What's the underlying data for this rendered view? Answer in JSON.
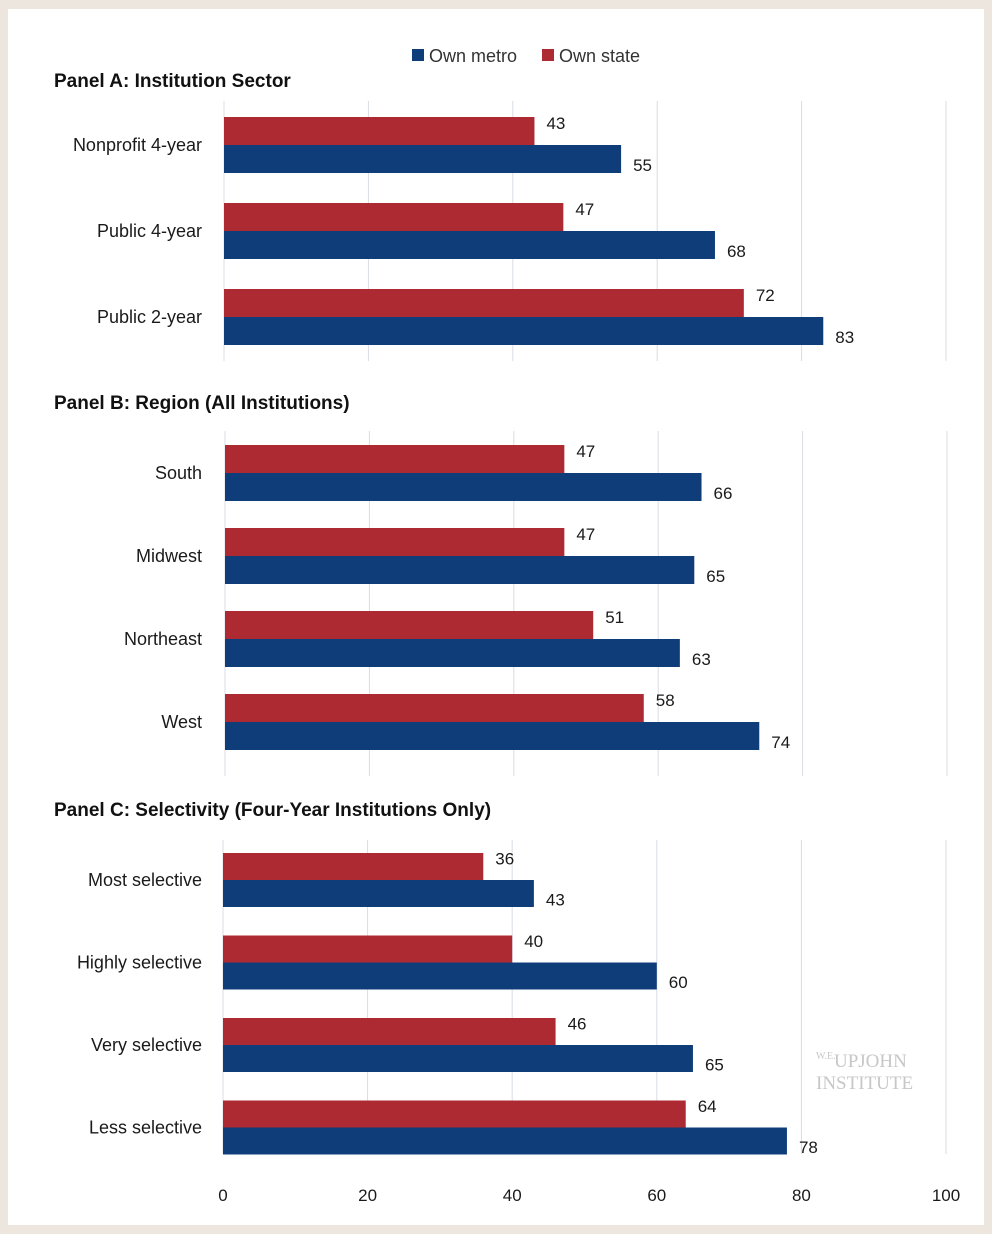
{
  "legend": [
    {
      "name": "Own metro",
      "color": "#0f3d7a"
    },
    {
      "name": "Own state",
      "color": "#ad2a33"
    }
  ],
  "watermark": {
    "small": "W.E.",
    "line1": "UPJOHN",
    "line2": "INSTITUTE"
  },
  "chart_data": [
    {
      "type": "bar",
      "orientation": "horizontal",
      "title": "Panel A: Institution Sector",
      "categories": [
        "Nonprofit 4-year",
        "Public 4-year",
        "Public 2-year"
      ],
      "series": [
        {
          "name": "Own state",
          "values": [
            43,
            47,
            72
          ]
        },
        {
          "name": "Own metro",
          "values": [
            55,
            68,
            83
          ]
        }
      ],
      "xlim": [
        0,
        100
      ],
      "grid": true
    },
    {
      "type": "bar",
      "orientation": "horizontal",
      "title": "Panel B: Region (All Institutions)",
      "categories": [
        "South",
        "Midwest",
        "Northeast",
        "West"
      ],
      "series": [
        {
          "name": "Own state",
          "values": [
            47,
            47,
            51,
            58
          ]
        },
        {
          "name": "Own metro",
          "values": [
            66,
            65,
            63,
            74
          ]
        }
      ],
      "xlim": [
        0,
        100
      ],
      "grid": true
    },
    {
      "type": "bar",
      "orientation": "horizontal",
      "title": "Panel C: Selectivity (Four-Year Institutions Only)",
      "categories": [
        "Most selective",
        "Highly selective",
        "Very selective",
        "Less selective"
      ],
      "series": [
        {
          "name": "Own state",
          "values": [
            36,
            40,
            46,
            64
          ]
        },
        {
          "name": "Own metro",
          "values": [
            43,
            60,
            65,
            78
          ]
        }
      ],
      "xlim": [
        0,
        100
      ],
      "xticks": [
        0,
        20,
        40,
        60,
        80,
        100
      ],
      "grid": true
    }
  ]
}
